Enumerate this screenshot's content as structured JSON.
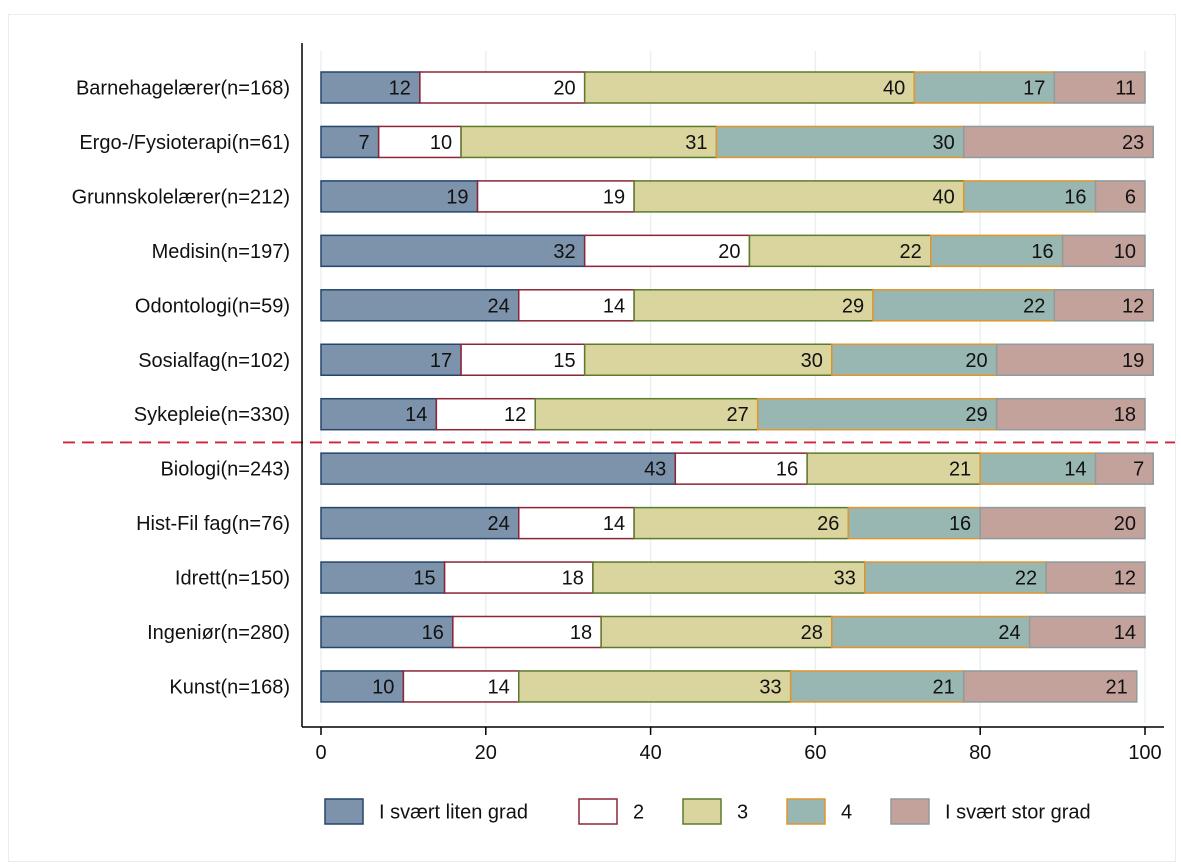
{
  "chart_data": {
    "type": "bar",
    "orientation": "horizontal",
    "stacked": true,
    "categories": [
      "Barnehagelærer(n=168)",
      "Ergo-/Fysioterapi(n=61)",
      "Grunnskolelærer(n=212)",
      "Medisin(n=197)",
      "Odontologi(n=59)",
      "Sosialfag(n=102)",
      "Sykepleie(n=330)",
      "Biologi(n=243)",
      "Hist-Fil fag(n=76)",
      "Idrett(n=150)",
      "Ingeniør(n=280)",
      "Kunst(n=168)"
    ],
    "series": [
      {
        "name": "I svært liten grad",
        "fill": "#7c93ab",
        "stroke": "#24466c",
        "values": [
          12,
          7,
          19,
          32,
          24,
          17,
          14,
          43,
          24,
          15,
          16,
          10
        ]
      },
      {
        "name": "2",
        "fill": "#ffffff",
        "stroke": "#8e2437",
        "values": [
          20,
          10,
          19,
          20,
          14,
          15,
          12,
          16,
          14,
          18,
          18,
          14
        ]
      },
      {
        "name": "3",
        "fill": "#dad59e",
        "stroke": "#5c7b2c",
        "values": [
          40,
          31,
          40,
          22,
          29,
          30,
          27,
          21,
          26,
          33,
          28,
          33
        ]
      },
      {
        "name": "4",
        "fill": "#99b7b2",
        "stroke": "#e0962c",
        "values": [
          17,
          30,
          16,
          16,
          22,
          20,
          29,
          14,
          16,
          22,
          24,
          21
        ]
      },
      {
        "name": "I svært stor grad",
        "fill": "#c4a29c",
        "stroke": "#8f9b9c",
        "values": [
          11,
          23,
          6,
          10,
          12,
          19,
          18,
          7,
          20,
          12,
          14,
          21
        ]
      }
    ],
    "xlim": [
      0,
      100
    ],
    "xticks": [
      0,
      20,
      40,
      60,
      80,
      100
    ],
    "grid": true,
    "legend_position": "bottom",
    "reference_line": {
      "style": "dashed",
      "color": "#d2223e",
      "between_categories": [
        "Sykepleie(n=330)",
        "Biologi(n=243)"
      ]
    }
  }
}
